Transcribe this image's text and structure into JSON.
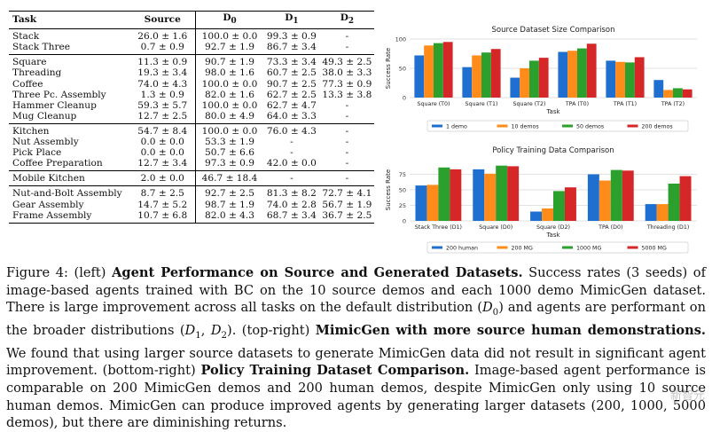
{
  "table": {
    "headers": [
      "Task",
      "Source",
      "D0",
      "D1",
      "D2"
    ],
    "header_parts": {
      "task": "Task",
      "source": "Source",
      "d0_base": "D",
      "d0_sub": "0",
      "d1_base": "D",
      "d1_sub": "1",
      "d2_base": "D",
      "d2_sub": "2"
    },
    "groups": [
      [
        [
          "Stack",
          "26.0 ± 1.6",
          "100.0 ± 0.0",
          "99.3 ± 0.9",
          "-"
        ],
        [
          "Stack Three",
          "0.7 ± 0.9",
          "92.7 ± 1.9",
          "86.7 ± 3.4",
          "-"
        ]
      ],
      [
        [
          "Square",
          "11.3 ± 0.9",
          "90.7 ± 1.9",
          "73.3 ± 3.4",
          "49.3 ± 2.5"
        ],
        [
          "Threading",
          "19.3 ± 3.4",
          "98.0 ± 1.6",
          "60.7 ± 2.5",
          "38.0 ± 3.3"
        ],
        [
          "Coffee",
          "74.0 ± 4.3",
          "100.0 ± 0.0",
          "90.7 ± 2.5",
          "77.3 ± 0.9"
        ],
        [
          "Three Pc. Assembly",
          "1.3 ± 0.9",
          "82.0 ± 1.6",
          "62.7 ± 2.5",
          "13.3 ± 3.8"
        ],
        [
          "Hammer Cleanup",
          "59.3 ± 5.7",
          "100.0 ± 0.0",
          "62.7 ± 4.7",
          "-"
        ],
        [
          "Mug Cleanup",
          "12.7 ± 2.5",
          "80.0 ± 4.9",
          "64.0 ± 3.3",
          "-"
        ]
      ],
      [
        [
          "Kitchen",
          "54.7 ± 8.4",
          "100.0 ± 0.0",
          "76.0 ± 4.3",
          "-"
        ],
        [
          "Nut Assembly",
          "0.0 ± 0.0",
          "53.3 ± 1.9",
          "-",
          "-"
        ],
        [
          "Pick Place",
          "0.0 ± 0.0",
          "50.7 ± 6.6",
          "-",
          "-"
        ],
        [
          "Coffee Preparation",
          "12.7 ± 3.4",
          "97.3 ± 0.9",
          "42.0 ± 0.0",
          "-"
        ]
      ],
      [
        [
          "Mobile Kitchen",
          "2.0 ± 0.0",
          "46.7 ± 18.4",
          "-",
          "-"
        ]
      ],
      [
        [
          "Nut-and-Bolt Assembly",
          "8.7 ± 2.5",
          "92.7 ± 2.5",
          "81.3 ± 8.2",
          "72.7 ± 4.1"
        ],
        [
          "Gear Assembly",
          "14.7 ± 5.2",
          "98.7 ± 1.9",
          "74.0 ± 2.8",
          "56.7 ± 1.9"
        ],
        [
          "Frame Assembly",
          "10.7 ± 6.8",
          "82.0 ± 4.3",
          "68.7 ± 3.4",
          "36.7 ± 2.5"
        ]
      ]
    ]
  },
  "chart_data": [
    {
      "type": "bar",
      "title": "Source Dataset Size Comparison",
      "xlabel": "Task",
      "ylabel": "Success Rate",
      "categories": [
        "Square (T0)",
        "Square (T1)",
        "Square (T2)",
        "TPA (T0)",
        "TPA (T1)",
        "TPA (T2)"
      ],
      "series": [
        {
          "name": "1 demo",
          "color": "#1f6fd0",
          "values": [
            72,
            52,
            34,
            78,
            63,
            30
          ]
        },
        {
          "name": "10 demos",
          "color": "#ff8c1a",
          "values": [
            89,
            72,
            50,
            80,
            61,
            13
          ]
        },
        {
          "name": "50 demos",
          "color": "#2ca02c",
          "values": [
            93,
            77,
            63,
            84,
            60,
            16
          ]
        },
        {
          "name": "200 demos",
          "color": "#d62728",
          "values": [
            95,
            83,
            68,
            92,
            69,
            14
          ]
        }
      ],
      "ylim": [
        0,
        100
      ],
      "yticks": [
        0,
        50,
        100
      ],
      "legend": "bottom"
    },
    {
      "type": "bar",
      "title": "Policy Training Data Comparison",
      "xlabel": "Task",
      "ylabel": "Success Rate",
      "categories": [
        "Stack Three (D1)",
        "Square (D0)",
        "Square (D2)",
        "TPA (D0)",
        "Threading (D1)"
      ],
      "series": [
        {
          "name": "200 human",
          "color": "#1f6fd0",
          "values": [
            57,
            83,
            15,
            75,
            27
          ]
        },
        {
          "name": "200 MG",
          "color": "#ff8c1a",
          "values": [
            58,
            76,
            20,
            65,
            27
          ]
        },
        {
          "name": "1000 MG",
          "color": "#2ca02c",
          "values": [
            86,
            89,
            48,
            82,
            60
          ]
        },
        {
          "name": "5000 MG",
          "color": "#d62728",
          "values": [
            83,
            88,
            54,
            81,
            72
          ]
        }
      ],
      "ylim": [
        0,
        100
      ],
      "yticks": [
        0,
        25,
        50,
        75
      ],
      "legend": "bottom"
    }
  ],
  "caption": {
    "figure_label": "Figure 4:",
    "part1_prefix": " (left) ",
    "part1_bold": "Agent Performance on Source and Generated Datasets.",
    "part1_text_a": " Success rates (3 seeds) of image-based agents trained with BC on the 10 source demos and each 1000 demo MimicGen dataset. There is large improvement across all tasks on the default distribution (",
    "d0_base": "D",
    "d0_sub": "0",
    "part1_text_b": ") and agents are performant on the broader distributions (",
    "d1_base": "D",
    "d1_sub": "1",
    "comma": ", ",
    "d2_base": "D",
    "d2_sub": "2",
    "part1_text_c": "). (top-right) ",
    "part2_bold": "MimicGen with more source human demonstrations.",
    "part2_text": " We found that using larger source datasets to generate MimicGen data did not result in significant agent improvement. (bottom-right) ",
    "part3_bold": "Policy Training Dataset Comparison.",
    "part3_text": " Image-based agent performance is comparable on 200 MimicGen demos and 200 human demos, despite MimicGen only using 10 source human demos. MimicGen can produce improved agents by generating larger datasets (200, 1000, 5000 demos), but there are diminishing returns."
  },
  "watermark": "新智元"
}
